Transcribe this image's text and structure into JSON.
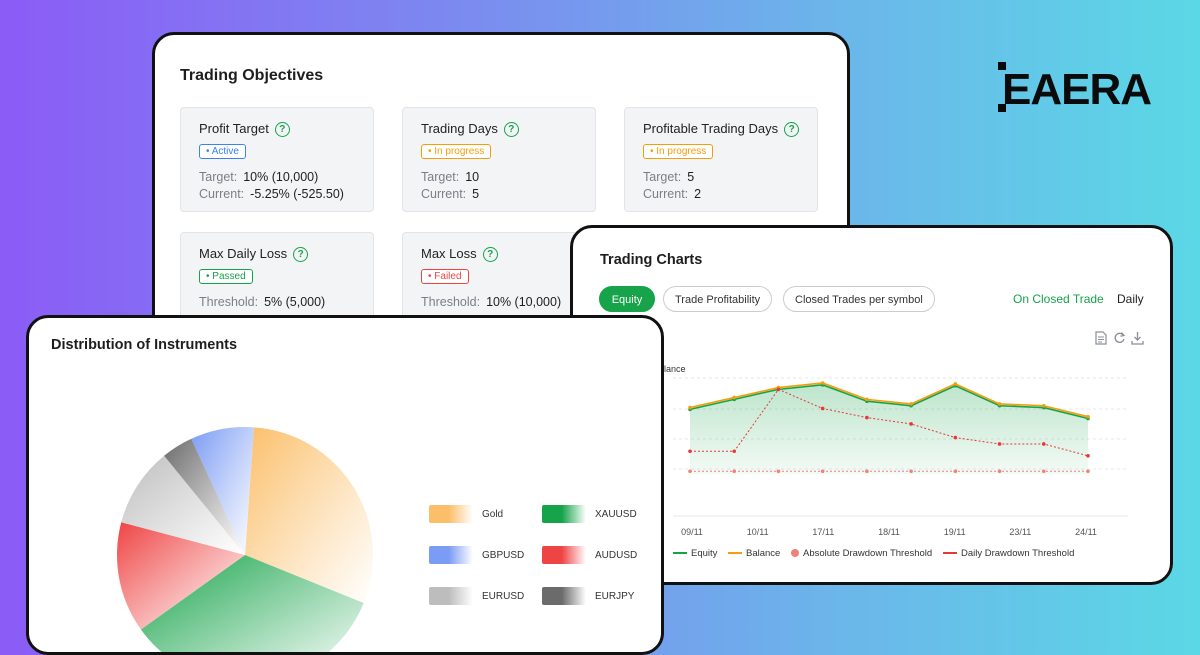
{
  "brand": {
    "logo_text": "EAERA"
  },
  "objectives": {
    "title": "Trading Objectives",
    "items": [
      {
        "name": "Profit Target",
        "status": "• Active",
        "status_type": "active",
        "label1": "Target:",
        "value1": "10% (10,000)",
        "label2": "Current:",
        "value2": "-5.25%  (-525.50)"
      },
      {
        "name": "Trading Days",
        "status": "• In progress",
        "status_type": "progress",
        "label1": "Target:",
        "value1": "10",
        "label2": "Current:",
        "value2": "5"
      },
      {
        "name": "Profitable Trading Days",
        "status": "• In progress",
        "status_type": "progress",
        "label1": "Target:",
        "value1": "5",
        "label2": "Current:",
        "value2": "2"
      },
      {
        "name": "Max Daily Loss",
        "status": "• Passed",
        "status_type": "passed",
        "label1": "Threshold:",
        "value1": "5% (5,000)"
      },
      {
        "name": "Max Loss",
        "status": "• Failed",
        "status_type": "failed",
        "label1": "Threshold:",
        "value1": "10% (10,000)"
      }
    ]
  },
  "trading_charts": {
    "title": "Trading Charts",
    "tabs": [
      "Equity",
      "Trade Profitability",
      "Closed Trades per symbol"
    ],
    "active_tab": "Equity",
    "mode_active": "On Closed Trade",
    "mode_other": "Daily",
    "tools": [
      "document-icon",
      "refresh-icon",
      "download-icon"
    ],
    "colors": {
      "equity": "#16a34a",
      "balance": "#f59e0b",
      "absolute": "#f0807a",
      "daily": "#e53935",
      "accent": "#16a34a"
    }
  },
  "chart_data": [
    {
      "type": "line",
      "title": "",
      "ylabel": "Balance",
      "x_ticks": [
        "09/11",
        "10/11",
        "17/11",
        "18/11",
        "19/11",
        "23/11",
        "24/11"
      ],
      "series": [
        {
          "name": "Equity",
          "values": [
            0.71,
            0.82,
            0.93,
            0.98,
            0.8,
            0.75,
            0.97,
            0.75,
            0.73,
            0.61
          ]
        },
        {
          "name": "Balance",
          "values": [
            0.73,
            0.84,
            0.95,
            1.0,
            0.82,
            0.77,
            0.99,
            0.77,
            0.75,
            0.63
          ]
        },
        {
          "name": "Absolute Drawdown Threshold",
          "values": [
            0.03,
            0.03,
            0.03,
            0.03,
            0.03,
            0.03,
            0.03,
            0.03,
            0.03,
            0.03
          ]
        },
        {
          "name": "Daily Drawdown Threshold",
          "values": [
            0.25,
            0.25,
            0.93,
            0.72,
            0.62,
            0.55,
            0.4,
            0.33,
            0.33,
            0.2
          ]
        }
      ],
      "grid": true,
      "legend": "bottom"
    },
    {
      "type": "pie",
      "title": "Distribution of Instruments",
      "labels": [
        "Gold",
        "XAUUSD",
        "GBPUSD",
        "AUDUSD",
        "EURUSD",
        "EURJPY"
      ],
      "values": [
        30,
        34,
        8,
        14,
        10,
        4
      ],
      "legend": "right"
    }
  ],
  "distribution": {
    "title": "Distribution of Instruments",
    "legend": [
      {
        "label": "Gold",
        "color": "#fbbf6a"
      },
      {
        "label": "XAUUSD",
        "color": "#16a34a"
      },
      {
        "label": "GBPUSD",
        "color": "#7b9cf5"
      },
      {
        "label": "AUDUSD",
        "color": "#ef4444"
      },
      {
        "label": "EURUSD",
        "color": "#bdbdbd"
      },
      {
        "label": "EURJPY",
        "color": "#6b6b6b"
      }
    ]
  }
}
